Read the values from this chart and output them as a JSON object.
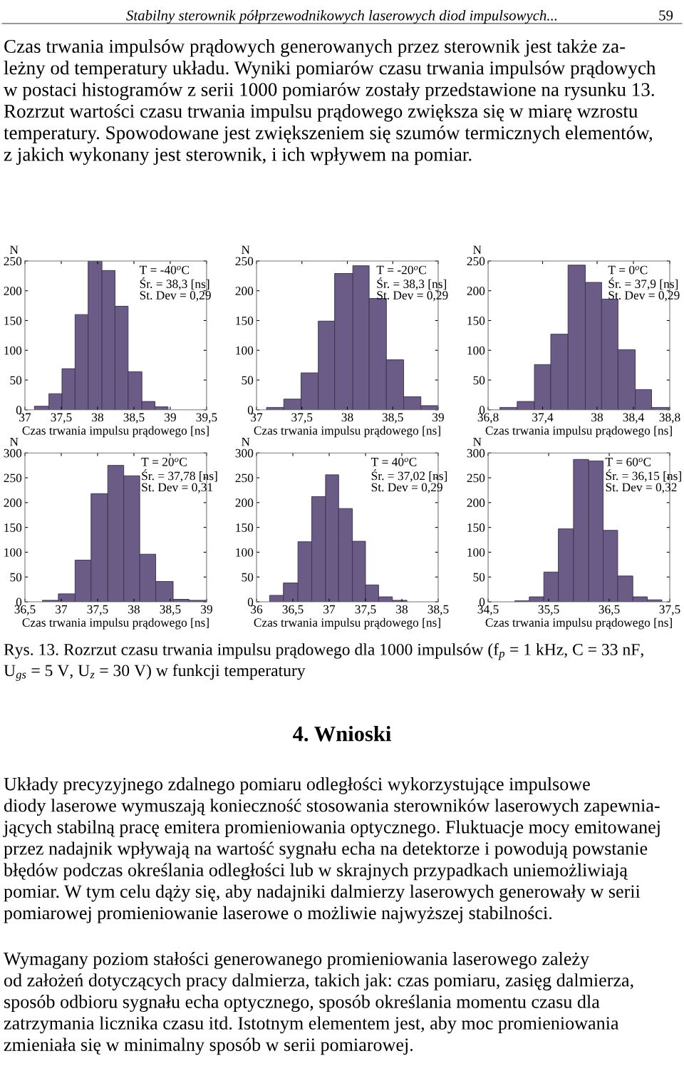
{
  "chart_data": [
    {
      "type": "histogram",
      "xlabel": "Czas trwania impulsu prądowego [ns]",
      "ylabel": "N",
      "color": "#6b5b87",
      "bins": [
        37.13,
        37.33,
        37.51,
        37.69,
        37.87,
        38.06,
        38.24,
        38.42,
        38.61,
        38.79,
        38.97
      ],
      "values": [
        6,
        27,
        69,
        160,
        250,
        234,
        174,
        64,
        14,
        5
      ],
      "xlim": [
        37,
        39.5
      ],
      "xticks": [
        37,
        {
          "value": 37.5,
          "label": "37,5"
        },
        38,
        {
          "value": 38.5,
          "label": "38,5"
        },
        39,
        {
          "value": 39.5,
          "label": "39,5"
        }
      ],
      "ylim": [
        0,
        250
      ],
      "yticks": [
        0,
        50,
        100,
        150,
        200,
        250
      ],
      "annotations": [
        "T = -40$^{o}$C",
        "Śr. = 38,3 [ns]",
        "St. Dev = 0,29",
        "Stabilny sterownik półprzewodnikowych laserowych diod impulsowych...",
        "59",
        "Czas trwania impulsów prądowych generowanych przez sterownik jest także za-\nleżny od temperatury układu. Wyniki pomiarów czasu trwania impulsów prądowych\nw postaci histogramów z serii 1000 pomiarów zostały przedstawione na rysunku 13.\nRozrzut wartości czasu trwania impulsu prądowego zwiększa się w miarę wzrostu\ntemperatury. Spowodowane jest zwiększeniem się szumów termicznych elementów,\nz jakich wykonany jest sterownik, i ich wpływem na pomiar."
      ]
    },
    {
      "type": "histogram",
      "xlabel": "Czas trwania impulsu prądowego [ns]",
      "ylabel": "N",
      "color": "#6b5b87",
      "bins": [
        37.11,
        37.3,
        37.49,
        37.68,
        37.86,
        38.06,
        38.24,
        38.43,
        38.62,
        38.81,
        39.0
      ],
      "values": [
        4,
        18,
        62,
        149,
        229,
        242,
        187,
        84,
        22,
        7
      ],
      "xlim": [
        37,
        39
      ],
      "xticks": [
        37,
        {
          "value": 37.5,
          "label": "37,5"
        },
        38,
        {
          "value": 38.5,
          "label": "38,5"
        },
        39
      ],
      "ylim": [
        0,
        250
      ],
      "yticks": [
        0,
        50,
        100,
        150,
        200,
        250
      ],
      "annotations": [
        "T = -20$^{o}$C",
        "Śr. = 38,3 [ns]",
        "St. Dev = 0,29"
      ]
    },
    {
      "type": "histogram",
      "xlabel": "Czas trwania impulsu prądowego [ns]",
      "ylabel": "N",
      "color": "#6b5b87",
      "bins": [
        36.93,
        37.12,
        37.31,
        37.49,
        37.68,
        37.87,
        38.05,
        38.23,
        38.42,
        38.6,
        38.79
      ],
      "values": [
        4,
        14,
        76,
        127,
        243,
        214,
        186,
        101,
        34,
        4
      ],
      "xlim": [
        36.8,
        38.8
      ],
      "xticks": [
        {
          "value": 36.8,
          "label": "36,8"
        },
        {
          "value": 37.4,
          "label": "37,4"
        },
        38,
        {
          "value": 38.4,
          "label": "38,4"
        },
        {
          "value": 38.8,
          "label": "38,8"
        }
      ],
      "ylim": [
        0,
        250
      ],
      "yticks": [
        0,
        50,
        100,
        150,
        200,
        250
      ],
      "annotations": [
        "T = 0$^{o}$C",
        "Śr. = 37,9 [ns]",
        "St. Dev = 0,29"
      ]
    },
    {
      "type": "histogram",
      "xlabel": "Czas trwania impulsu prądowego [ns]",
      "ylabel": "N",
      "color": "#6b5b87",
      "bins": [
        36.74,
        36.96,
        37.19,
        37.41,
        37.64,
        37.86,
        38.08,
        38.3,
        38.54,
        38.76,
        38.99
      ],
      "values": [
        3,
        16,
        84,
        218,
        275,
        254,
        96,
        41,
        5,
        3
      ],
      "xlim": [
        36.5,
        39
      ],
      "xticks": [
        {
          "value": 36.5,
          "label": "36,5"
        },
        37,
        {
          "value": 37.5,
          "label": "37,5"
        },
        38,
        {
          "value": 38.5,
          "label": "38,5"
        },
        39
      ],
      "ylim": [
        0,
        300
      ],
      "yticks": [
        0,
        50,
        100,
        150,
        200,
        250,
        300
      ],
      "annotations": [
        "T = 20$^{o}$C",
        "Śr. = 37,78 [ns]",
        "St. Dev = 0,31"
      ]
    },
    {
      "type": "histogram",
      "xlabel": "Czas trwania impulsu prądowego [ns]",
      "ylabel": "N",
      "color": "#6b5b87",
      "bins": [
        36.18,
        36.37,
        36.57,
        36.76,
        36.95,
        37.13,
        37.32,
        37.5,
        37.68,
        37.87,
        38.07
      ],
      "values": [
        13,
        38,
        121,
        212,
        256,
        188,
        122,
        34,
        10,
        3
      ],
      "xlim": [
        36,
        38.5
      ],
      "xticks": [
        36,
        {
          "value": 36.5,
          "label": "36,5"
        },
        37,
        {
          "value": 37.5,
          "label": "37,5"
        },
        38,
        {
          "value": 38.5,
          "label": "38,5"
        }
      ],
      "ylim": [
        0,
        300
      ],
      "yticks": [
        0,
        50,
        100,
        150,
        200,
        250,
        300
      ],
      "annotations": [
        "T = 40$^{o}$C",
        "Śr. = 37,02 [ns]",
        "St. Dev = 0,29"
      ]
    },
    {
      "type": "histogram",
      "xlabel": "Czas trwania impulsu prądowego [ns]",
      "ylabel": "N",
      "color": "#6b5b87",
      "bins": [
        34.94,
        35.18,
        35.42,
        35.66,
        35.91,
        36.16,
        36.4,
        36.64,
        36.89,
        37.13,
        37.37
      ],
      "values": [
        2,
        10,
        60,
        147,
        287,
        284,
        144,
        52,
        10,
        4
      ],
      "xlim": [
        34.5,
        37.5
      ],
      "xticks": [
        {
          "value": 34.5,
          "label": "34,5"
        },
        {
          "value": 35.5,
          "label": "35,5"
        },
        {
          "value": 36.5,
          "label": "36,5"
        },
        {
          "value": 37.5,
          "label": "37,5"
        }
      ],
      "ylim": [
        0,
        300
      ],
      "yticks": [
        0,
        50,
        100,
        150,
        200,
        250,
        300
      ],
      "annotations": [
        "T = 60$^{o}$C",
        "Śr. = 36,15 [ns]",
        "St. Dev = 0,32",
        "Rys. 13. Rozrzut czasu trwania impulsu prądowego dla 1000 impulsów (f$_{p}$ = 1 kHz, C = 33 nF,\nU$_{gs}$ = 5 V, U$_{z}$ = 30 V) w funkcji temperatury",
        "4. Wnioski",
        "Układy precyzyjnego zdalnego pomiaru odległości wykorzystujące impulsowe\ndiody laserowe wymuszają konieczność stosowania sterowników laserowych zapewnia-\njących stabilną pracę emitera promieniowania optycznego. Fluktuacje mocy emitowanej\nprzez nadajnik wpływają na wartość sygnału echa na detektorze i powodują powstanie\nbłędów podczas określania odległości lub w skrajnych przypadkach uniemożliwiają\npomiar. W tym celu dąży się, aby nadajniki dalmierzy laserowych generowały w serii\npomiarowej promieniowanie laserowe o możliwie najwyższej stabilności.",
        "Wymagany poziom stałości generowanego promieniowania laserowego zależy\nod założeń dotyczących pracy dalmierza, takich jak: czas pomiaru, zasięg dalmierza,\nsposób odbioru sygnału echa optycznego, sposób określania momentu czasu dla\nzatrzymania licznika czasu itd. Istotnym elementem jest, aby moc promieniowania\nzmieniała się w minimalny sposób w serii pomiarowej."
      ]
    }
  ]
}
